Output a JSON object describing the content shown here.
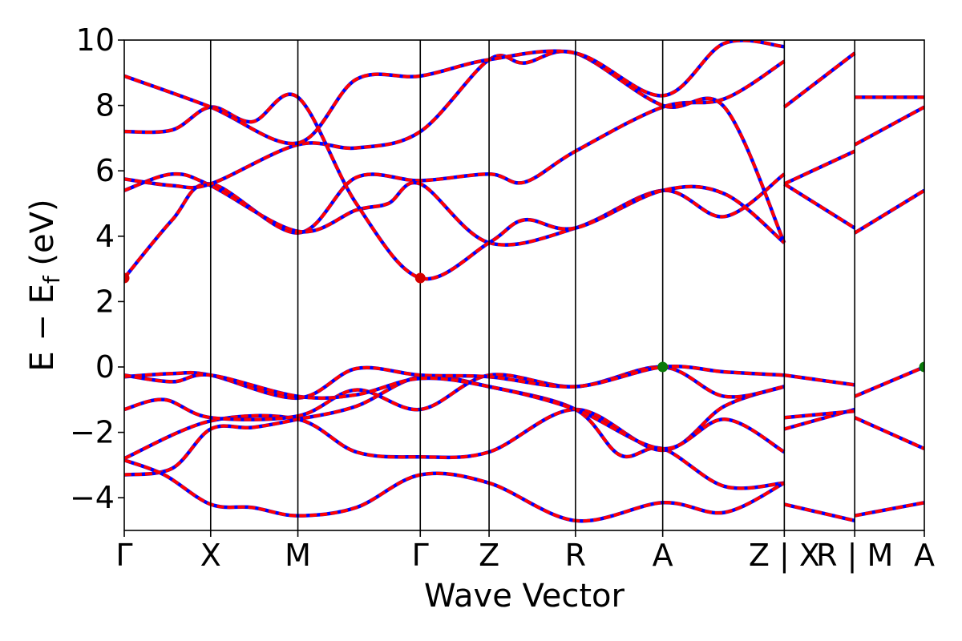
{
  "chart_data": {
    "type": "line",
    "xlabel": "Wave Vector",
    "ylabel": "E − E_f (eV)",
    "ylabel_main": "E − E",
    "ylabel_sub": "f",
    "ylabel_unit": " (eV)",
    "ylim": [
      -5,
      10
    ],
    "yticks": [
      -4,
      -2,
      0,
      2,
      4,
      6,
      8,
      10
    ],
    "ytick_labels": [
      "−4",
      "−2",
      "0",
      "2",
      "4",
      "6",
      "8",
      "10"
    ],
    "xlim": [
      0,
      1
    ],
    "kpoints": [
      {
        "label": "Γ",
        "x": 0.0
      },
      {
        "label": "X",
        "x": 0.108
      },
      {
        "label": "M",
        "x": 0.217
      },
      {
        "label": "Γ",
        "x": 0.37
      },
      {
        "label": "Z",
        "x": 0.456
      },
      {
        "label": "R",
        "x": 0.564
      },
      {
        "label": "A",
        "x": 0.673
      },
      {
        "label": "Z | X",
        "x": 0.825
      },
      {
        "label": "R | M",
        "x": 0.913
      },
      {
        "label": "A",
        "x": 1.0
      }
    ],
    "band_style": {
      "color": "#ff0000",
      "dash_color": "#0000ff",
      "note": "two overlaid band sets: solid red and dashed blue"
    },
    "special_points": [
      {
        "x": 0.0,
        "y": 2.72,
        "color": "#d40000",
        "kind": "CBM"
      },
      {
        "x": 0.37,
        "y": 2.72,
        "color": "#d40000",
        "kind": "CBM"
      },
      {
        "x": 0.673,
        "y": 0.0,
        "color": "#0a7a0a",
        "kind": "VBM"
      },
      {
        "x": 1.0,
        "y": 0.0,
        "color": "#0a7a0a",
        "kind": "VBM"
      }
    ],
    "bands": [
      [
        [
          0,
          -3.3
        ],
        [
          0.06,
          -3.1
        ],
        [
          0.108,
          -1.9
        ],
        [
          0.16,
          -1.85
        ],
        [
          0.217,
          -1.6
        ],
        [
          0.29,
          -1.2
        ],
        [
          0.37,
          -0.3
        ],
        [
          0.456,
          -0.6
        ],
        [
          0.564,
          -1.3
        ],
        [
          0.62,
          -2.7
        ],
        [
          0.673,
          -2.5
        ],
        [
          0.75,
          -3.65
        ],
        [
          0.825,
          -3.55
        ]
      ],
      [
        [
          0,
          -2.85
        ],
        [
          0.05,
          -3.3
        ],
        [
          0.108,
          -4.2
        ],
        [
          0.16,
          -4.3
        ],
        [
          0.217,
          -4.55
        ],
        [
          0.29,
          -4.3
        ],
        [
          0.37,
          -3.3
        ],
        [
          0.456,
          -3.55
        ],
        [
          0.564,
          -4.7
        ],
        [
          0.673,
          -4.15
        ],
        [
          0.75,
          -4.45
        ],
        [
          0.825,
          -3.55
        ]
      ],
      [
        [
          0,
          -2.8
        ],
        [
          0.108,
          -1.65
        ],
        [
          0.217,
          -1.6
        ],
        [
          0.29,
          -2.6
        ],
        [
          0.37,
          -2.75
        ],
        [
          0.456,
          -2.6
        ],
        [
          0.564,
          -1.3
        ],
        [
          0.673,
          -2.55
        ],
        [
          0.75,
          -1.2
        ],
        [
          0.825,
          -0.6
        ]
      ],
      [
        [
          0,
          -1.3
        ],
        [
          0.05,
          -1.0
        ],
        [
          0.108,
          -1.55
        ],
        [
          0.217,
          -1.5
        ],
        [
          0.29,
          -0.7
        ],
        [
          0.37,
          -1.3
        ],
        [
          0.456,
          -0.25
        ],
        [
          0.564,
          -0.6
        ],
        [
          0.673,
          0.0
        ],
        [
          0.75,
          -0.9
        ],
        [
          0.825,
          -0.6
        ]
      ],
      [
        [
          0,
          -0.3
        ],
        [
          0.06,
          -0.2
        ],
        [
          0.108,
          -0.25
        ],
        [
          0.217,
          -0.95
        ],
        [
          0.29,
          -0.05
        ],
        [
          0.37,
          -0.25
        ],
        [
          0.456,
          -0.3
        ],
        [
          0.564,
          -0.6
        ],
        [
          0.673,
          0.0
        ],
        [
          0.75,
          -0.15
        ],
        [
          0.825,
          -0.25
        ]
      ],
      [
        [
          0,
          -0.25
        ],
        [
          0.06,
          -0.45
        ],
        [
          0.108,
          -0.25
        ],
        [
          0.217,
          -0.9
        ],
        [
          0.29,
          -0.85
        ],
        [
          0.37,
          -0.35
        ],
        [
          0.456,
          -0.6
        ],
        [
          0.564,
          -1.3
        ],
        [
          0.673,
          -2.5
        ],
        [
          0.75,
          -1.6
        ],
        [
          0.825,
          -2.6
        ]
      ],
      [
        [
          0,
          2.72
        ],
        [
          0.06,
          4.5
        ],
        [
          0.108,
          5.6
        ],
        [
          0.217,
          4.1
        ],
        [
          0.29,
          5.8
        ],
        [
          0.37,
          5.7
        ],
        [
          0.456,
          5.9
        ],
        [
          0.5,
          5.65
        ],
        [
          0.564,
          6.6
        ],
        [
          0.673,
          7.95
        ],
        [
          0.75,
          8.2
        ],
        [
          0.825,
          9.35
        ]
      ],
      [
        [
          0,
          5.4
        ],
        [
          0.06,
          5.9
        ],
        [
          0.108,
          5.55
        ],
        [
          0.217,
          4.15
        ],
        [
          0.29,
          4.8
        ],
        [
          0.33,
          5.0
        ],
        [
          0.37,
          5.6
        ],
        [
          0.456,
          3.8
        ],
        [
          0.564,
          4.25
        ],
        [
          0.673,
          5.4
        ],
        [
          0.75,
          4.6
        ],
        [
          0.825,
          5.9
        ]
      ],
      [
        [
          0,
          5.75
        ],
        [
          0.06,
          5.55
        ],
        [
          0.108,
          5.6
        ],
        [
          0.217,
          6.8
        ],
        [
          0.29,
          6.7
        ],
        [
          0.37,
          7.2
        ],
        [
          0.456,
          9.4
        ],
        [
          0.5,
          9.3
        ],
        [
          0.564,
          9.6
        ],
        [
          0.673,
          8.0
        ],
        [
          0.75,
          7.95
        ],
        [
          0.825,
          3.8
        ]
      ],
      [
        [
          0,
          7.2
        ],
        [
          0.06,
          7.25
        ],
        [
          0.108,
          7.95
        ],
        [
          0.16,
          7.5
        ],
        [
          0.217,
          8.25
        ],
        [
          0.29,
          5.0
        ],
        [
          0.37,
          2.72
        ],
        [
          0.456,
          3.8
        ],
        [
          0.5,
          4.5
        ],
        [
          0.564,
          4.25
        ],
        [
          0.673,
          5.4
        ],
        [
          0.75,
          5.3
        ],
        [
          0.825,
          3.8
        ]
      ],
      [
        [
          0,
          8.9
        ],
        [
          0.108,
          7.95
        ],
        [
          0.217,
          6.85
        ],
        [
          0.29,
          8.8
        ],
        [
          0.37,
          8.9
        ],
        [
          0.456,
          9.4
        ],
        [
          0.564,
          9.6
        ],
        [
          0.673,
          8.3
        ],
        [
          0.75,
          9.9
        ],
        [
          0.825,
          9.8
        ]
      ],
      [
        [
          0.825,
          -4.2
        ],
        [
          0.913,
          -4.7
        ]
      ],
      [
        [
          0.825,
          -1.9
        ],
        [
          0.913,
          -1.3
        ]
      ],
      [
        [
          0.825,
          -1.55
        ],
        [
          0.913,
          -1.35
        ]
      ],
      [
        [
          0.825,
          -0.25
        ],
        [
          0.913,
          -0.55
        ]
      ],
      [
        [
          0.825,
          5.6
        ],
        [
          0.913,
          4.25
        ]
      ],
      [
        [
          0.825,
          5.6
        ],
        [
          0.913,
          6.6
        ]
      ],
      [
        [
          0.825,
          7.95
        ],
        [
          0.913,
          9.6
        ]
      ],
      [
        [
          0.913,
          -4.55
        ],
        [
          1.0,
          -4.15
        ]
      ],
      [
        [
          0.913,
          -1.55
        ],
        [
          1.0,
          -2.5
        ]
      ],
      [
        [
          0.913,
          -0.9
        ],
        [
          1.0,
          0.0
        ]
      ],
      [
        [
          0.913,
          4.1
        ],
        [
          1.0,
          5.4
        ]
      ],
      [
        [
          0.913,
          6.8
        ],
        [
          1.0,
          7.95
        ]
      ],
      [
        [
          0.913,
          8.25
        ],
        [
          1.0,
          8.25
        ]
      ]
    ]
  }
}
